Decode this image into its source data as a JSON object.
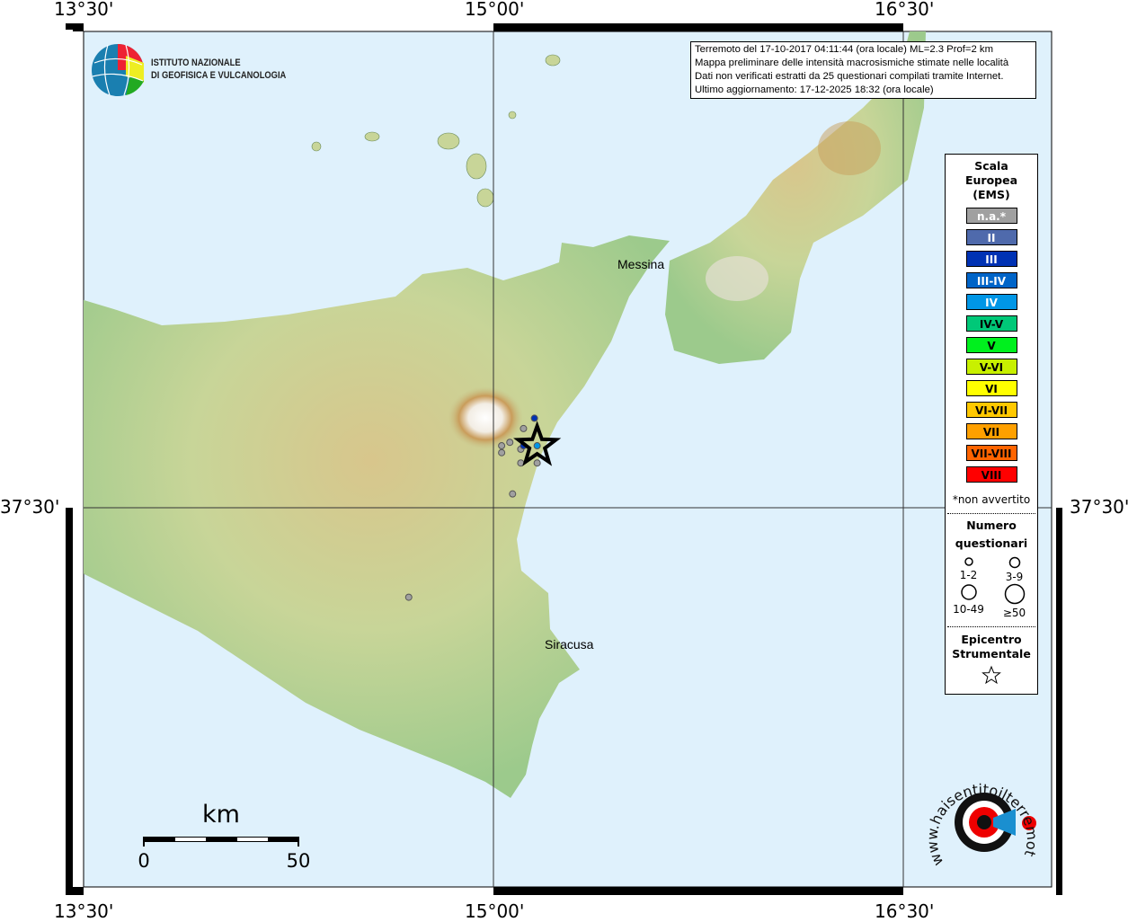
{
  "coords": {
    "lon_left": "13°30'",
    "lon_mid": "15°00'",
    "lon_right": "16°30'",
    "lat": "37°30'"
  },
  "logo": {
    "line1": "ISTITUTO NAZIONALE",
    "line2": "DI GEOFISICA E VULCANOLOGIA"
  },
  "info": [
    "Terremoto del 17-10-2017 04:11:44 (ora locale) ML=2.3 Prof=2 km",
    "Mappa preliminare delle intensità macrosismiche stimate nelle località",
    "Dati non verificati estratti da 25 questionari compilati tramite Internet.",
    "Ultimo aggiornamento: 17-12-2025 18:32 (ora locale)"
  ],
  "places": {
    "messina": "Messina",
    "siracusa": "Siracusa"
  },
  "legend": {
    "title": [
      "Scala",
      "Europea",
      "(EMS)"
    ],
    "scale": [
      {
        "label": "n.a.*",
        "color": "#a0a0a0",
        "text": "#fff"
      },
      {
        "label": "II",
        "color": "#4f6aac",
        "text": "#fff"
      },
      {
        "label": "III",
        "color": "#0032b4",
        "text": "#fff"
      },
      {
        "label": "III-IV",
        "color": "#0064c8",
        "text": "#fff"
      },
      {
        "label": "IV",
        "color": "#0096e6",
        "text": "#fff"
      },
      {
        "label": "IV-V",
        "color": "#00c878",
        "text": "#000"
      },
      {
        "label": "V",
        "color": "#00f01e",
        "text": "#000"
      },
      {
        "label": "V-VI",
        "color": "#c8f000",
        "text": "#000"
      },
      {
        "label": "VI",
        "color": "#ffff00",
        "text": "#000"
      },
      {
        "label": "VI-VII",
        "color": "#ffc800",
        "text": "#000"
      },
      {
        "label": "VII",
        "color": "#ffa000",
        "text": "#000"
      },
      {
        "label": "VII-VIII",
        "color": "#ff6400",
        "text": "#000"
      },
      {
        "label": "VIII",
        "color": "#ff0000",
        "text": "#000"
      }
    ],
    "note": "*non avvertito",
    "count_title": [
      "Numero",
      "questionari"
    ],
    "counts": [
      "1-2",
      "3-9",
      "10-49",
      "≥50"
    ],
    "epi_title": [
      "Epicentro",
      "Strumentale"
    ]
  },
  "scalebar": {
    "unit": "km",
    "min": "0",
    "max": "50"
  },
  "watermark": "www.haisentitoilterremoto.it",
  "points": [
    {
      "lon": 15.11,
      "lat": 37.73,
      "int": "n.a."
    },
    {
      "lon": 15.06,
      "lat": 37.69,
      "int": "n.a."
    },
    {
      "lon": 15.03,
      "lat": 37.68,
      "int": "n.a."
    },
    {
      "lon": 15.03,
      "lat": 37.66,
      "int": "n.a."
    },
    {
      "lon": 15.1,
      "lat": 37.67,
      "int": "n.a."
    },
    {
      "lon": 15.1,
      "lat": 37.63,
      "int": "n.a."
    },
    {
      "lon": 15.16,
      "lat": 37.63,
      "int": "n.a."
    },
    {
      "lon": 15.07,
      "lat": 37.54,
      "int": "n.a."
    },
    {
      "lon": 14.69,
      "lat": 37.24,
      "int": "n.a."
    },
    {
      "lon": 15.15,
      "lat": 37.76,
      "int": "III"
    },
    {
      "lon": 15.11,
      "lat": 37.68,
      "int": "III"
    },
    {
      "lon": 15.16,
      "lat": 37.68,
      "int": "IV"
    }
  ],
  "epicenter": {
    "lon": 15.16,
    "lat": 37.68
  }
}
